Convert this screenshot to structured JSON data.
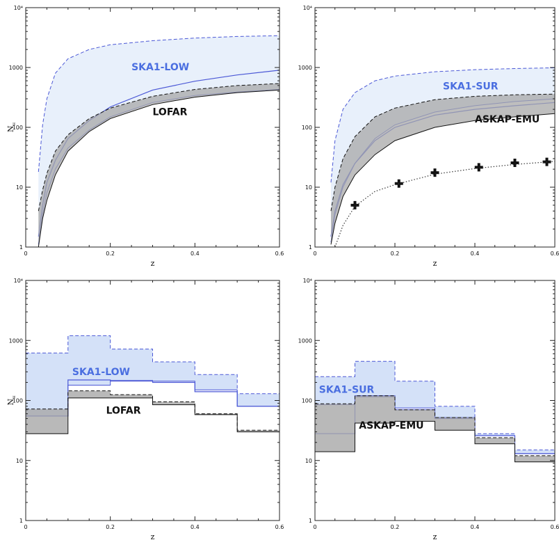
{
  "colors": {
    "blue_line": "#4a57d6",
    "blue_fill": "#ccdcf7",
    "blue_fill_light": "#e6eefb",
    "gray_fill": "#a8a8a8",
    "black": "#111111"
  },
  "chart_data": [
    {
      "type": "area",
      "panel": "top-left",
      "xlabel": "z",
      "ylabel": "NH",
      "xlim": [
        0,
        0.6
      ],
      "ylim": [
        1,
        10000
      ],
      "yscale": "log",
      "xticks": [
        "0",
        "0.2",
        "0.4",
        "0.6"
      ],
      "yticks": [
        "1",
        "10",
        "100",
        "1000",
        "10⁴"
      ],
      "annotations": [
        {
          "text": "SKA1-LOW",
          "color": "#4a6ee0",
          "x": 0.25,
          "y": 900
        },
        {
          "text": "LOFAR",
          "color": "#111111",
          "x": 0.3,
          "y": 160
        }
      ],
      "series": [
        {
          "name": "SKA1-LOW",
          "style": "band",
          "color": "#4a57d6",
          "x": [
            0.03,
            0.04,
            0.05,
            0.07,
            0.1,
            0.15,
            0.2,
            0.3,
            0.4,
            0.5,
            0.6
          ],
          "upper": [
            18,
            110,
            300,
            800,
            1400,
            2000,
            2400,
            2800,
            3100,
            3300,
            3400
          ],
          "central": [
            1.5,
            5,
            12,
            28,
            65,
            130,
            220,
            420,
            590,
            750,
            900
          ],
          "lower": [
            1.1,
            3.5,
            8,
            20,
            45,
            90,
            150,
            260,
            340,
            390,
            430
          ]
        },
        {
          "name": "LOFAR",
          "style": "band",
          "color": "#111111",
          "x": [
            0.03,
            0.04,
            0.05,
            0.07,
            0.1,
            0.15,
            0.2,
            0.3,
            0.4,
            0.5,
            0.6
          ],
          "upper": [
            4,
            9,
            17,
            40,
            75,
            140,
            210,
            330,
            430,
            500,
            540
          ],
          "lower": [
            1,
            3,
            6,
            16,
            40,
            85,
            140,
            240,
            320,
            380,
            420
          ]
        }
      ]
    },
    {
      "type": "area",
      "panel": "top-right",
      "xlabel": "z",
      "ylabel": "",
      "xlim": [
        0,
        0.6
      ],
      "ylim": [
        1,
        10000
      ],
      "yscale": "log",
      "xticks": [
        "0",
        "0.2",
        "0.4",
        "0.6"
      ],
      "yticks": [
        "1",
        "10",
        "100",
        "1000",
        "10⁴"
      ],
      "annotations": [
        {
          "text": "SKA1-SUR",
          "color": "#4a6ee0",
          "x": 0.32,
          "y": 430
        },
        {
          "text": "ASKAP-EMU",
          "color": "#111111",
          "x": 0.4,
          "y": 120
        }
      ],
      "series": [
        {
          "name": "SKA1-SUR",
          "style": "band",
          "color": "#4a57d6",
          "x": [
            0.04,
            0.05,
            0.07,
            0.1,
            0.15,
            0.2,
            0.3,
            0.4,
            0.5,
            0.6
          ],
          "upper": [
            12,
            60,
            200,
            380,
            600,
            720,
            850,
            920,
            960,
            990
          ],
          "central": [
            1.5,
            4,
            11,
            25,
            60,
            100,
            160,
            200,
            230,
            260
          ],
          "lower": [
            1.2,
            3.5,
            10,
            25,
            65,
            110,
            180,
            230,
            270,
            300
          ]
        },
        {
          "name": "ASKAP-EMU",
          "style": "band",
          "color": "#111111",
          "x": [
            0.04,
            0.05,
            0.07,
            0.1,
            0.15,
            0.2,
            0.3,
            0.4,
            0.5,
            0.6
          ],
          "upper": [
            4,
            10,
            30,
            70,
            150,
            210,
            290,
            330,
            350,
            360
          ],
          "lower": [
            1.1,
            2.5,
            7,
            16,
            35,
            60,
            100,
            130,
            150,
            170
          ]
        },
        {
          "name": "",
          "style": "points",
          "color": "#111111",
          "x": [
            0.1,
            0.21,
            0.3,
            0.41,
            0.5,
            0.58
          ],
          "y": [
            5,
            11.5,
            17.5,
            21.5,
            25.5,
            26.5
          ]
        },
        {
          "name": "",
          "style": "dotted-fit",
          "color": "#333333",
          "x": [
            0.05,
            0.07,
            0.1,
            0.15,
            0.2,
            0.3,
            0.4,
            0.5,
            0.6
          ],
          "y": [
            1,
            2.3,
            4.8,
            8.5,
            11,
            16.5,
            20.5,
            24,
            27
          ]
        }
      ]
    },
    {
      "type": "area",
      "panel": "bottom-left",
      "xlabel": "z",
      "ylabel": "NH",
      "xlim": [
        0,
        0.6
      ],
      "ylim": [
        1,
        10000
      ],
      "yscale": "log",
      "xticks": [
        "0",
        "0.2",
        "0.4",
        "0.6"
      ],
      "yticks": [
        "1",
        "10",
        "100",
        "1000",
        "10⁴"
      ],
      "annotations": [
        {
          "text": "SKA1-LOW",
          "color": "#4a6ee0",
          "x": 0.11,
          "y": 265
        },
        {
          "text": "LOFAR",
          "color": "#111111",
          "x": 0.19,
          "y": 60
        }
      ],
      "series": [
        {
          "name": "SKA1-LOW",
          "style": "step-band",
          "color": "#4a57d6",
          "edges": [
            0,
            0.1,
            0.2,
            0.3,
            0.4,
            0.5,
            0.6
          ],
          "upper": [
            620,
            1200,
            720,
            440,
            270,
            130
          ],
          "central": [
            55,
            220,
            210,
            200,
            140,
            80
          ],
          "lower": [
            55,
            180,
            215,
            210,
            150,
            80
          ]
        },
        {
          "name": "LOFAR",
          "style": "step-band",
          "color": "#111111",
          "edges": [
            0,
            0.1,
            0.2,
            0.3,
            0.4,
            0.5,
            0.6
          ],
          "upper": [
            72,
            145,
            125,
            95,
            60,
            32
          ],
          "lower": [
            28,
            110,
            110,
            85,
            58,
            30
          ]
        }
      ]
    },
    {
      "type": "area",
      "panel": "bottom-right",
      "xlabel": "z",
      "ylabel": "",
      "xlim": [
        0,
        0.6
      ],
      "ylim": [
        1,
        10000
      ],
      "yscale": "log",
      "xticks": [
        "0",
        "0.2",
        "0.4",
        "0.6"
      ],
      "yticks": [
        "1",
        "10",
        "100",
        "1000",
        "10⁴"
      ],
      "annotations": [
        {
          "text": "SKA1-SUR",
          "color": "#4a6ee0",
          "x": 0.01,
          "y": 135
        },
        {
          "text": "ASKAP-EMU",
          "color": "#111111",
          "x": 0.11,
          "y": 34
        }
      ],
      "series": [
        {
          "name": "SKA1-SUR",
          "style": "step-band",
          "color": "#4a57d6",
          "edges": [
            0,
            0.1,
            0.2,
            0.3,
            0.4,
            0.5,
            0.6
          ],
          "upper": [
            250,
            450,
            210,
            80,
            28,
            15
          ],
          "central": [
            28,
            120,
            70,
            50,
            26,
            13
          ],
          "lower": [
            85,
            115,
            75,
            52,
            26,
            13
          ]
        },
        {
          "name": "ASKAP-EMU",
          "style": "step-band",
          "color": "#111111",
          "edges": [
            0,
            0.1,
            0.2,
            0.3,
            0.4,
            0.5,
            0.6
          ],
          "upper": [
            88,
            120,
            70,
            52,
            24,
            12
          ],
          "lower": [
            14,
            42,
            45,
            32,
            19,
            9.5
          ]
        }
      ]
    }
  ]
}
